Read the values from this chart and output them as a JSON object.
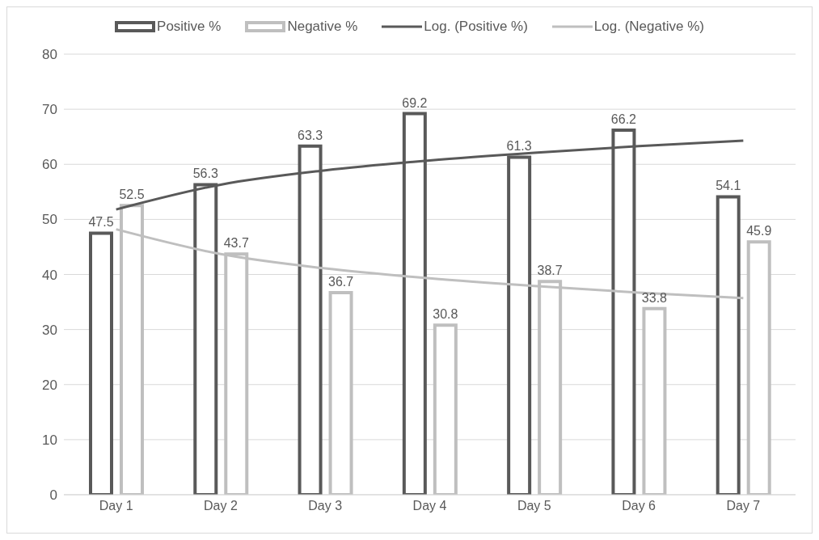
{
  "chart_data": {
    "type": "bar",
    "categories": [
      "Day 1",
      "Day 2",
      "Day 3",
      "Day 4",
      "Day 5",
      "Day 6",
      "Day 7"
    ],
    "series": [
      {
        "name": "Positive %",
        "color": "#595959",
        "values": [
          47.5,
          56.3,
          63.3,
          69.2,
          61.3,
          66.2,
          54.1
        ],
        "value_labels": [
          "47.5",
          "56.3",
          "63.3",
          "69.2",
          "61.3",
          "66.2",
          "54.1"
        ]
      },
      {
        "name": "Negative %",
        "color": "#bfbfbf",
        "values": [
          52.5,
          43.7,
          36.7,
          30.8,
          38.7,
          33.8,
          45.9
        ],
        "value_labels": [
          "52.5",
          "43.7",
          "36.7",
          "30.8",
          "38.7",
          "33.8",
          "45.9"
        ]
      },
      {
        "name": "Log. (Positive %)",
        "type": "line",
        "color": "#595959",
        "values": [
          51.8,
          56.3,
          58.9,
          60.7,
          62.1,
          63.3,
          64.3
        ]
      },
      {
        "name": "Log. (Negative %)",
        "type": "line",
        "color": "#bfbfbf",
        "values": [
          48.2,
          43.7,
          41.1,
          39.3,
          37.9,
          36.7,
          35.7
        ]
      }
    ],
    "ylim": [
      0,
      80
    ],
    "yticks": [
      0,
      10,
      20,
      30,
      40,
      50,
      60,
      70,
      80
    ],
    "grid": "y",
    "legend": "top",
    "marker": "none",
    "line_style": "solid"
  }
}
